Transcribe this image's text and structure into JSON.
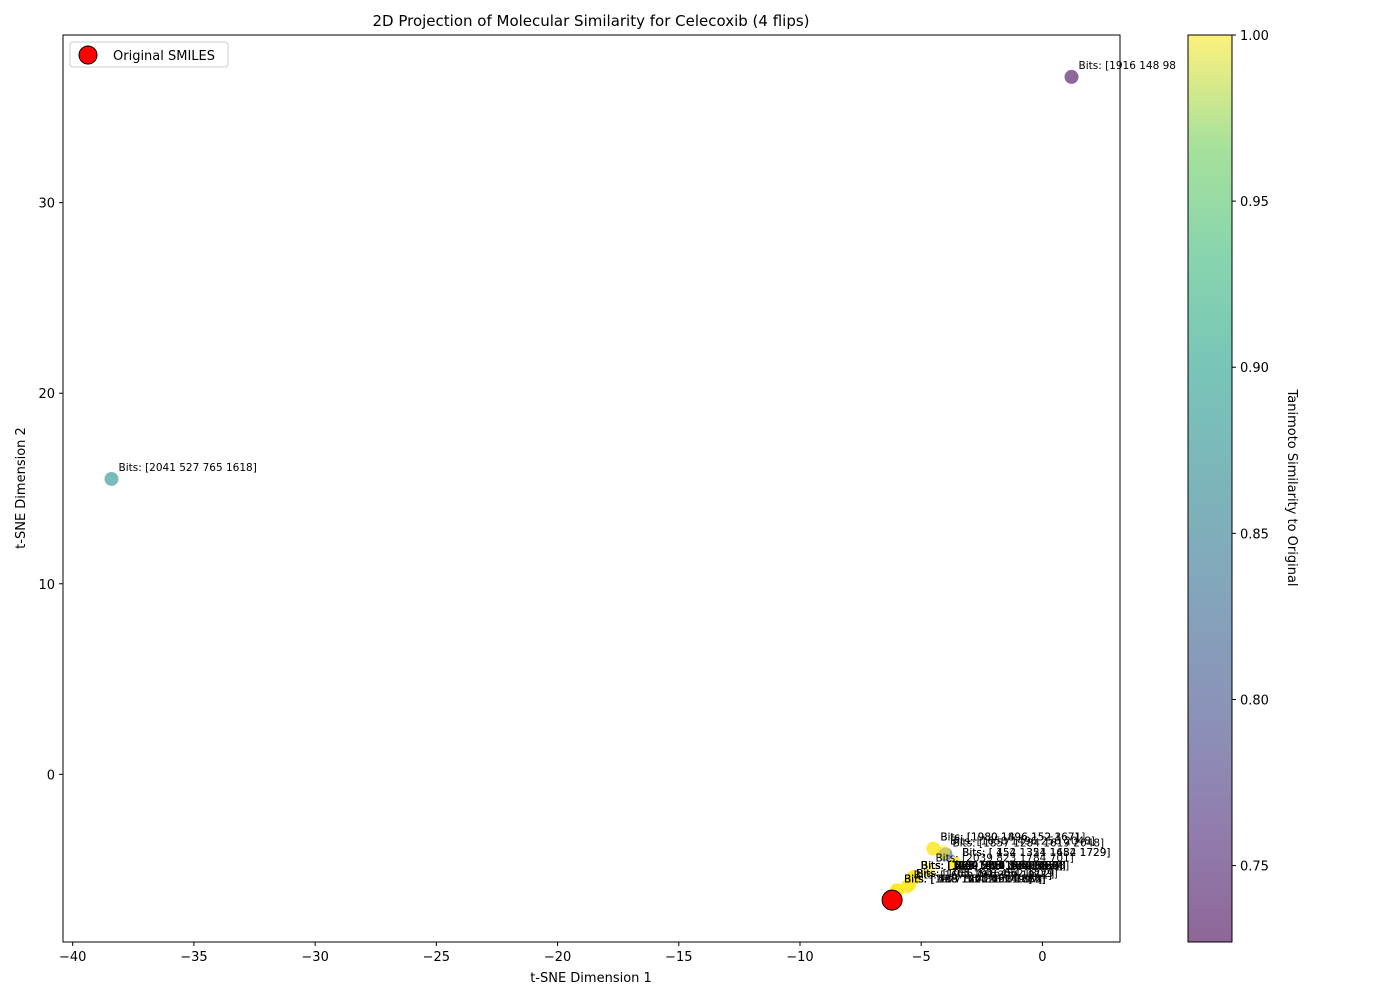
{
  "chart_data": {
    "type": "scatter",
    "title": "2D Projection of Molecular Similarity for Celecoxib (4 flips)",
    "xlabel": "t-SNE Dimension 1",
    "ylabel": "t-SNE Dimension 2",
    "xlim": [
      -40.4,
      3.2
    ],
    "ylim": [
      -8.8,
      38.8
    ],
    "xticks": [
      -40,
      -35,
      -30,
      -25,
      -20,
      -15,
      -10,
      -5,
      0
    ],
    "yticks": [
      0,
      10,
      20,
      30
    ],
    "grid": false,
    "legend": {
      "entries": [
        "Original SMILES"
      ],
      "location": "upper-left"
    },
    "colorbar": {
      "label": "Tanimoto Similarity to Original",
      "colormap": "viridis",
      "range": [
        0.727,
        1.0
      ],
      "ticks": [
        "0.75",
        "0.80",
        "0.85",
        "0.90",
        "0.95",
        "1.00"
      ]
    },
    "original": {
      "x": -6.2,
      "y": -6.6,
      "color": "#ff0000",
      "label": "Original SMILES"
    },
    "points": [
      {
        "x": 1.2,
        "y": 36.6,
        "similarity": 0.73,
        "label": "Bits: [1916  148  98"
      },
      {
        "x": -38.4,
        "y": 15.5,
        "similarity": 0.88,
        "label": "Bits: [2041  527  765 1618]"
      },
      {
        "x": -4.5,
        "y": -3.9,
        "similarity": 1.0,
        "label": "Bits: [1980 1896  152 1671]"
      },
      {
        "x": -4.5,
        "y": -3.9,
        "similarity": 1.0,
        "label": "Bits: [1980 1496  152  367]"
      },
      {
        "x": -4.0,
        "y": -4.2,
        "similarity": 0.82,
        "label": "Bits: [1857 1284 1619 2048]"
      },
      {
        "x": -4.1,
        "y": -4.1,
        "similarity": 1.0,
        "label": "Bits: [1650 1496  256 2048]"
      },
      {
        "x": -3.6,
        "y": -4.7,
        "similarity": 1.0,
        "label": "Bits: [ 454 1321 1482 1729]"
      },
      {
        "x": -3.6,
        "y": -4.7,
        "similarity": 1.0,
        "label": "Bits: [ 152 1354 1654 1729]"
      },
      {
        "x": -4.7,
        "y": -5.0,
        "similarity": 1.0,
        "label": "Bits: [2039  823 1784  701]"
      },
      {
        "x": -5.3,
        "y": -5.4,
        "similarity": 1.0,
        "label": "Bits: [1650  389 1496  652]"
      },
      {
        "x": -5.3,
        "y": -5.4,
        "similarity": 1.0,
        "label": "Bits: [ 873 1911  354 1729]"
      },
      {
        "x": -5.3,
        "y": -5.4,
        "similarity": 1.0,
        "label": "Bits: [1024  519 1380  367]"
      },
      {
        "x": -5.3,
        "y": -5.4,
        "similarity": 1.0,
        "label": "Bits: [ 650 1471 1802 2048]"
      },
      {
        "x": -5.3,
        "y": -5.4,
        "similarity": 1.0,
        "label": "Bits: [1229  733 1662  915]"
      },
      {
        "x": -5.3,
        "y": -5.4,
        "similarity": 1.0,
        "label": "Bits: [ 329 1820 1035  152]"
      },
      {
        "x": -5.3,
        "y": -5.4,
        "similarity": 1.0,
        "label": "Bits: [ 491 1618  870 1284]"
      },
      {
        "x": -5.3,
        "y": -5.4,
        "similarity": 1.0,
        "label": "Bits: [1740  256 1917  583]"
      },
      {
        "x": -5.3,
        "y": -5.4,
        "similarity": 1.0,
        "label": "Bits: [ 738 1654 1321  498]"
      },
      {
        "x": -5.3,
        "y": -5.4,
        "similarity": 1.0,
        "label": "Bits: [1482  915 1284 1977]"
      },
      {
        "x": -5.3,
        "y": -5.4,
        "similarity": 1.0,
        "label": "Bits: [ 285 1857 1650  720]"
      },
      {
        "x": -5.3,
        "y": -5.4,
        "similarity": 1.0,
        "label": "Bits: [ 389 1896  527 1380]"
      },
      {
        "x": -5.5,
        "y": -5.8,
        "similarity": 1.0,
        "label": "Bits: [ 765 1916  652 1229]"
      },
      {
        "x": -5.5,
        "y": -5.8,
        "similarity": 1.0,
        "label": "Bits: [1035  148  454 1802]"
      },
      {
        "x": -5.6,
        "y": -5.9,
        "similarity": 1.0,
        "label": "Bits: [1671  701  329 1911]"
      },
      {
        "x": -6.0,
        "y": -6.1,
        "similarity": 1.0,
        "label": "Bits: [ 498 1740 1024  873]"
      },
      {
        "x": -6.0,
        "y": -6.1,
        "similarity": 1.0,
        "label": "Bits: [1977  354  285 1917]"
      },
      {
        "x": -6.0,
        "y": -6.1,
        "similarity": 1.0,
        "label": "Bits: [ 583  720  870  738]"
      },
      {
        "x": -6.0,
        "y": -6.1,
        "similarity": 1.0,
        "label": "Bits: [ 519 1471  650 1662]"
      },
      {
        "x": -6.0,
        "y": -6.1,
        "similarity": 1.0,
        "label": "Bits: [ 733 1820  491 1784]"
      }
    ]
  }
}
